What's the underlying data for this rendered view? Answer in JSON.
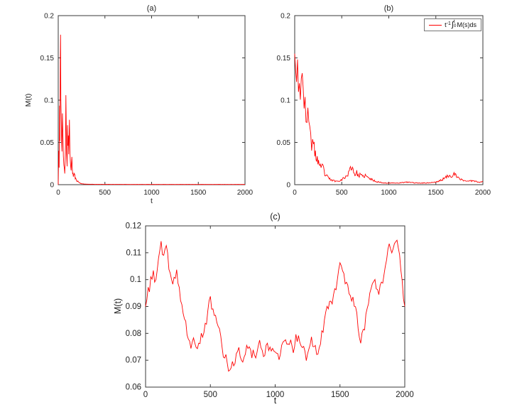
{
  "page": {
    "background": "#ffffff",
    "accent_line_color": "#ff0000",
    "axis_color": "#3a3a3a"
  },
  "chart_data": [
    {
      "id": "a",
      "type": "line",
      "title": "(a)",
      "xlabel": "t",
      "ylabel": "M(t)",
      "xlim": [
        0,
        2000
      ],
      "ylim": [
        0,
        0.2
      ],
      "xticks": [
        0,
        500,
        1000,
        1500,
        2000
      ],
      "xtick_labels": [
        "0",
        "500",
        "1000",
        "1500",
        "2000"
      ],
      "yticks": [
        0,
        0.05,
        0.1,
        0.15,
        0.2
      ],
      "ytick_labels": [
        "0",
        "0.05",
        "0.1",
        "0.15",
        "0.2"
      ],
      "grid": false,
      "line_color": "#ff0000",
      "noise": {
        "seed": 11,
        "step": 5,
        "amp": 0.18,
        "mode": "relative"
      },
      "points": [
        [
          0,
          0
        ],
        [
          5,
          0.04
        ],
        [
          10,
          0.02
        ],
        [
          15,
          0.09
        ],
        [
          18,
          0.05
        ],
        [
          22,
          0.13
        ],
        [
          25,
          0.175
        ],
        [
          28,
          0.12
        ],
        [
          32,
          0.08
        ],
        [
          36,
          0.05
        ],
        [
          40,
          0.04
        ],
        [
          45,
          0.085
        ],
        [
          50,
          0.055
        ],
        [
          55,
          0.035
        ],
        [
          60,
          0.022
        ],
        [
          70,
          0.015
        ],
        [
          78,
          0.05
        ],
        [
          82,
          0.11
        ],
        [
          86,
          0.07
        ],
        [
          90,
          0.035
        ],
        [
          95,
          0.025
        ],
        [
          100,
          0.068
        ],
        [
          104,
          0.045
        ],
        [
          108,
          0.06
        ],
        [
          112,
          0.032
        ],
        [
          116,
          0.05
        ],
        [
          120,
          0.07
        ],
        [
          125,
          0.042
        ],
        [
          130,
          0.026
        ],
        [
          138,
          0.02
        ],
        [
          146,
          0.028
        ],
        [
          154,
          0.015
        ],
        [
          162,
          0.01
        ],
        [
          172,
          0.013
        ],
        [
          182,
          0.008
        ],
        [
          195,
          0.005
        ],
        [
          210,
          0.004
        ],
        [
          230,
          0.002
        ],
        [
          255,
          0.001
        ],
        [
          300,
          0.0006
        ],
        [
          400,
          0.0004
        ],
        [
          800,
          0.0003
        ],
        [
          1400,
          0.0003
        ],
        [
          2000,
          0.0003
        ]
      ]
    },
    {
      "id": "b",
      "type": "line",
      "title": "(b)",
      "xlabel": "",
      "ylabel": "",
      "xlim": [
        0,
        2000
      ],
      "ylim": [
        0,
        0.2
      ],
      "xticks": [
        0,
        500,
        1000,
        1500,
        2000
      ],
      "xtick_labels": [
        "0",
        "500",
        "1000",
        "1500",
        "2000"
      ],
      "yticks": [
        0,
        0.05,
        0.1,
        0.15,
        0.2
      ],
      "ytick_labels": [
        "0",
        "0.05",
        "0.1",
        "0.15",
        "0.2"
      ],
      "grid": false,
      "line_color": "#ff0000",
      "legend_position": "top-right",
      "legend": {
        "t": "t",
        "exp": "-1",
        "int": "∫",
        "lower": "0",
        "upper": "t",
        "rest": "M(s)ds"
      },
      "noise": {
        "seed": 23,
        "step": 7,
        "amp": 0.22,
        "mode": "relative"
      },
      "points": [
        [
          0,
          0.155
        ],
        [
          10,
          0.165
        ],
        [
          20,
          0.15
        ],
        [
          30,
          0.14
        ],
        [
          40,
          0.12
        ],
        [
          50,
          0.13
        ],
        [
          60,
          0.115
        ],
        [
          70,
          0.125
        ],
        [
          80,
          0.11
        ],
        [
          90,
          0.1
        ],
        [
          100,
          0.115
        ],
        [
          110,
          0.095
        ],
        [
          120,
          0.085
        ],
        [
          130,
          0.09
        ],
        [
          140,
          0.075
        ],
        [
          150,
          0.065
        ],
        [
          160,
          0.07
        ],
        [
          170,
          0.055
        ],
        [
          180,
          0.05
        ],
        [
          190,
          0.055
        ],
        [
          200,
          0.045
        ],
        [
          220,
          0.035
        ],
        [
          240,
          0.03
        ],
        [
          260,
          0.025
        ],
        [
          280,
          0.018
        ],
        [
          300,
          0.022
        ],
        [
          320,
          0.012
        ],
        [
          340,
          0.01
        ],
        [
          360,
          0.008
        ],
        [
          380,
          0.006
        ],
        [
          400,
          0.005
        ],
        [
          450,
          0.004
        ],
        [
          500,
          0.006
        ],
        [
          550,
          0.01
        ],
        [
          580,
          0.015
        ],
        [
          600,
          0.022
        ],
        [
          620,
          0.018
        ],
        [
          640,
          0.012
        ],
        [
          660,
          0.014
        ],
        [
          680,
          0.01
        ],
        [
          700,
          0.012
        ],
        [
          720,
          0.009
        ],
        [
          750,
          0.011
        ],
        [
          780,
          0.008
        ],
        [
          820,
          0.006
        ],
        [
          860,
          0.004
        ],
        [
          900,
          0.003
        ],
        [
          950,
          0.002
        ],
        [
          1000,
          0.002
        ],
        [
          1100,
          0.002
        ],
        [
          1200,
          0.003
        ],
        [
          1300,
          0.002
        ],
        [
          1400,
          0.002
        ],
        [
          1500,
          0.003
        ],
        [
          1550,
          0.005
        ],
        [
          1600,
          0.008
        ],
        [
          1650,
          0.012
        ],
        [
          1680,
          0.01
        ],
        [
          1700,
          0.013
        ],
        [
          1720,
          0.009
        ],
        [
          1750,
          0.007
        ],
        [
          1800,
          0.005
        ],
        [
          1850,
          0.004
        ],
        [
          1900,
          0.005
        ],
        [
          1950,
          0.003
        ],
        [
          2000,
          0.004
        ]
      ]
    },
    {
      "id": "c",
      "type": "line",
      "title": "(c)",
      "xlabel": "t",
      "ylabel": "M(t)",
      "xlim": [
        0,
        2000
      ],
      "ylim": [
        0.06,
        0.12
      ],
      "xticks": [
        0,
        500,
        1000,
        1500,
        2000
      ],
      "xtick_labels": [
        "0",
        "500",
        "1000",
        "1500",
        "2000"
      ],
      "yticks": [
        0.06,
        0.07,
        0.08,
        0.09,
        0.1,
        0.11,
        0.12
      ],
      "ytick_labels": [
        "0.06",
        "0.07",
        "0.08",
        "0.09",
        "0.1",
        "0.11",
        "0.12"
      ],
      "grid": false,
      "line_color": "#ff0000",
      "noise": {
        "seed": 37,
        "step": 9,
        "amp": 0.0022,
        "mode": "absolute"
      },
      "points": [
        [
          0,
          0.09
        ],
        [
          20,
          0.095
        ],
        [
          40,
          0.1
        ],
        [
          60,
          0.103
        ],
        [
          80,
          0.098
        ],
        [
          100,
          0.108
        ],
        [
          120,
          0.113
        ],
        [
          140,
          0.108
        ],
        [
          160,
          0.111
        ],
        [
          180,
          0.105
        ],
        [
          200,
          0.099
        ],
        [
          220,
          0.101
        ],
        [
          240,
          0.103
        ],
        [
          260,
          0.096
        ],
        [
          280,
          0.09
        ],
        [
          300,
          0.085
        ],
        [
          320,
          0.08
        ],
        [
          340,
          0.077
        ],
        [
          360,
          0.075
        ],
        [
          380,
          0.078
        ],
        [
          400,
          0.074
        ],
        [
          420,
          0.077
        ],
        [
          440,
          0.08
        ],
        [
          460,
          0.083
        ],
        [
          480,
          0.088
        ],
        [
          500,
          0.092
        ],
        [
          520,
          0.09
        ],
        [
          540,
          0.085
        ],
        [
          560,
          0.083
        ],
        [
          580,
          0.078
        ],
        [
          600,
          0.072
        ],
        [
          620,
          0.07
        ],
        [
          640,
          0.067
        ],
        [
          660,
          0.069
        ],
        [
          680,
          0.068
        ],
        [
          700,
          0.071
        ],
        [
          720,
          0.073
        ],
        [
          740,
          0.07
        ],
        [
          760,
          0.072
        ],
        [
          780,
          0.074
        ],
        [
          800,
          0.076
        ],
        [
          820,
          0.073
        ],
        [
          840,
          0.071
        ],
        [
          860,
          0.075
        ],
        [
          880,
          0.078
        ],
        [
          900,
          0.074
        ],
        [
          920,
          0.072
        ],
        [
          940,
          0.075
        ],
        [
          960,
          0.073
        ],
        [
          980,
          0.076
        ],
        [
          1000,
          0.074
        ],
        [
          1020,
          0.071
        ],
        [
          1040,
          0.073
        ],
        [
          1060,
          0.076
        ],
        [
          1080,
          0.078
        ],
        [
          1100,
          0.075
        ],
        [
          1120,
          0.077
        ],
        [
          1140,
          0.074
        ],
        [
          1160,
          0.078
        ],
        [
          1180,
          0.08
        ],
        [
          1200,
          0.077
        ],
        [
          1220,
          0.075
        ],
        [
          1240,
          0.072
        ],
        [
          1260,
          0.075
        ],
        [
          1280,
          0.078
        ],
        [
          1300,
          0.076
        ],
        [
          1320,
          0.073
        ],
        [
          1340,
          0.075
        ],
        [
          1360,
          0.08
        ],
        [
          1380,
          0.085
        ],
        [
          1400,
          0.088
        ],
        [
          1420,
          0.092
        ],
        [
          1440,
          0.09
        ],
        [
          1460,
          0.095
        ],
        [
          1480,
          0.1
        ],
        [
          1500,
          0.107
        ],
        [
          1520,
          0.103
        ],
        [
          1540,
          0.099
        ],
        [
          1560,
          0.097
        ],
        [
          1580,
          0.095
        ],
        [
          1600,
          0.092
        ],
        [
          1620,
          0.088
        ],
        [
          1640,
          0.083
        ],
        [
          1660,
          0.078
        ],
        [
          1680,
          0.08
        ],
        [
          1700,
          0.085
        ],
        [
          1720,
          0.09
        ],
        [
          1740,
          0.098
        ],
        [
          1760,
          0.1
        ],
        [
          1780,
          0.097
        ],
        [
          1800,
          0.094
        ],
        [
          1820,
          0.098
        ],
        [
          1840,
          0.103
        ],
        [
          1860,
          0.108
        ],
        [
          1880,
          0.112
        ],
        [
          1900,
          0.109
        ],
        [
          1920,
          0.113
        ],
        [
          1940,
          0.115
        ],
        [
          1960,
          0.108
        ],
        [
          1980,
          0.1
        ],
        [
          2000,
          0.09
        ]
      ]
    }
  ]
}
